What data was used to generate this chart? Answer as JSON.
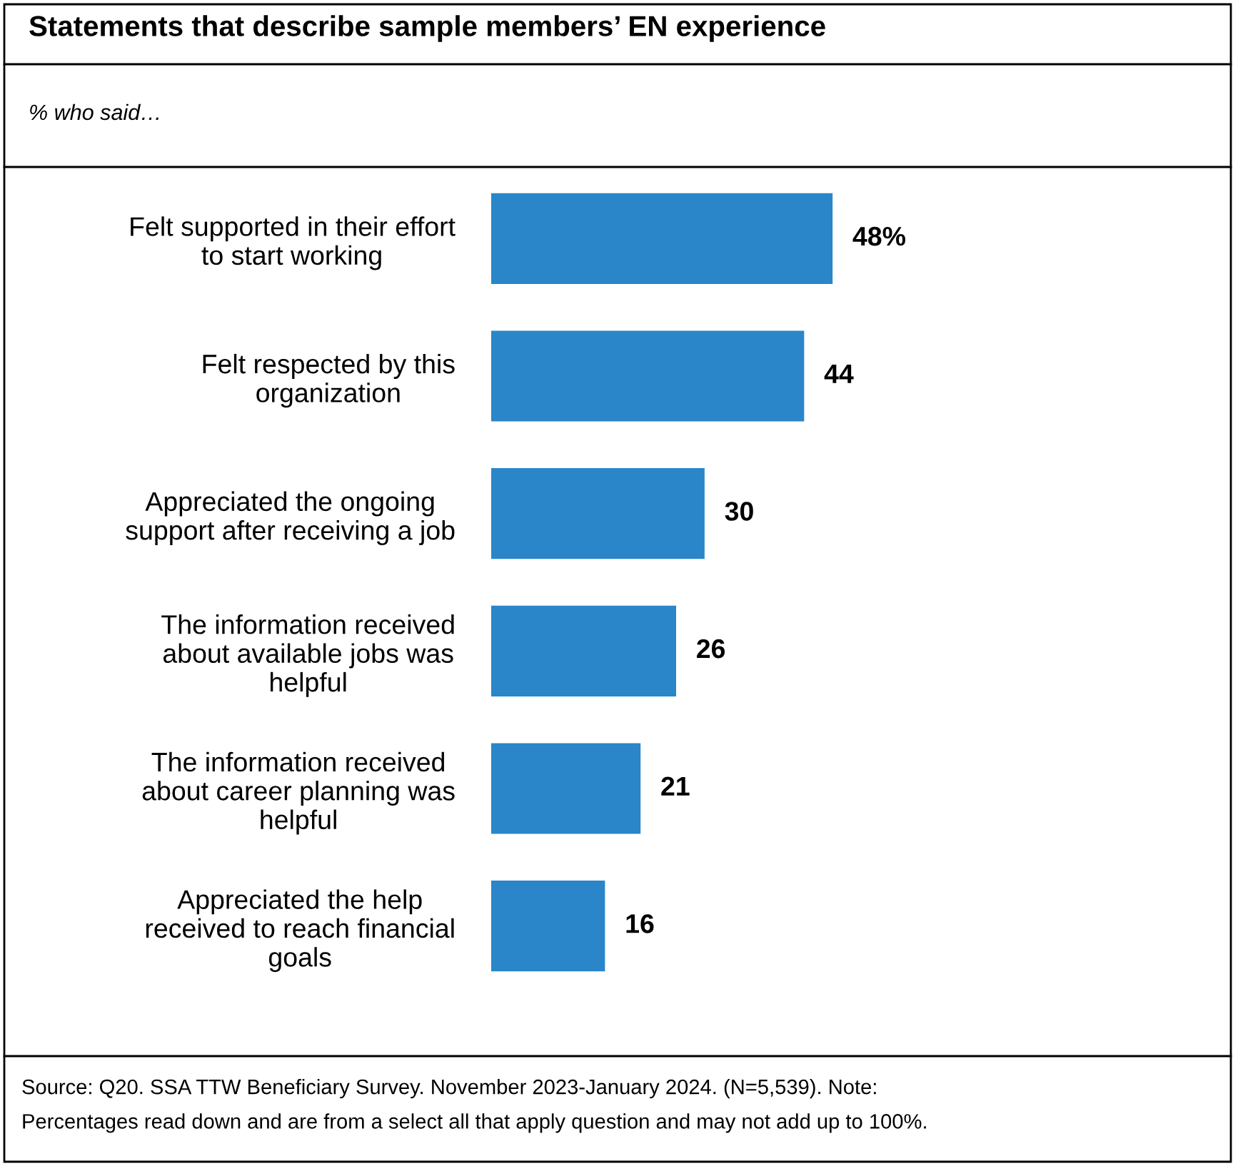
{
  "chart_data": {
    "type": "bar",
    "orientation": "horizontal",
    "title": "Statements that describe sample members’ EN experience",
    "subtitle": "% who said…",
    "categories": [
      "Felt supported in their effort\nto start working",
      "Felt respected by this\norganization",
      "Appreciated the ongoing\nsupport after receiving a job",
      "The information received\nabout available jobs was\nhelpful",
      "The information received\nabout career planning was\nhelpful",
      "Appreciated the help\nreceived to reach financial\ngoals"
    ],
    "values": [
      48,
      44,
      30,
      26,
      21,
      16
    ],
    "value_labels": [
      "48%",
      "44",
      "30",
      "26",
      "21",
      "16"
    ],
    "color": "#2a86c8",
    "grid": false,
    "legend": false,
    "annotations": [
      "Source: Q20. SSA TTW Beneficiary Survey. November 2023-January 2024. (N=5,539). Note:\nPercentages read down and are from a select all that apply question and may not add up to 100%."
    ]
  }
}
